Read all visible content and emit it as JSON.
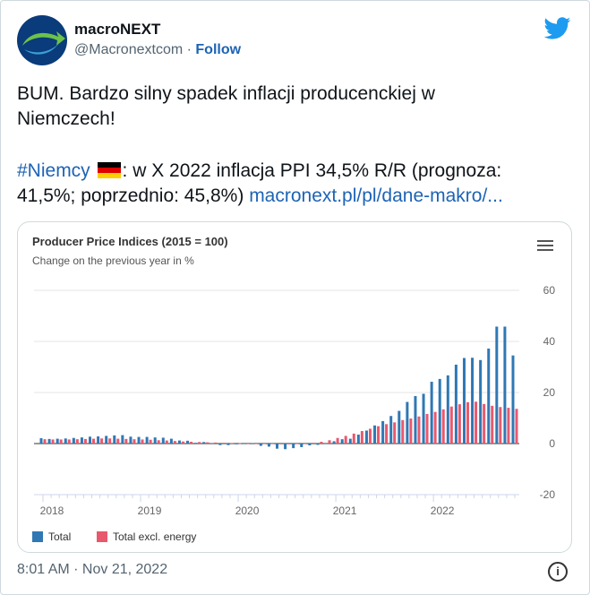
{
  "author": {
    "name": "macroNEXT",
    "handle": "@Macronextcom",
    "separator": "·",
    "follow_label": "Follow"
  },
  "tweet": {
    "line1": "BUM. Bardzo silny spadek inflacji producenckiej w",
    "line2": "Niemczech!",
    "hashtag": "#Niemcy",
    "line3_rest": ": w X 2022 inflacja PPI 34,5% R/R (prognoza:",
    "line4": "41,5%; poprzednio: 45,8%)",
    "link": "macronext.pl/pl/dane-makro/..."
  },
  "chart": {
    "title": "Producer Price Indices (2015 = 100)",
    "subtitle": "Change on the previous year in %"
  },
  "chart_data": {
    "type": "bar",
    "ylim": [
      -20,
      60
    ],
    "yticks": [
      "60",
      "40",
      "20",
      "0",
      "-20"
    ],
    "xticks": [
      "2018",
      "2019",
      "2020",
      "2021",
      "2022"
    ],
    "grid": true,
    "legend_placement": "bottom-left",
    "series": [
      {
        "name": "Total",
        "color": "#2f78b4",
        "values": [
          2.1,
          1.8,
          1.9,
          2.0,
          2.2,
          2.4,
          2.7,
          2.8,
          3.0,
          3.2,
          3.3,
          2.7,
          2.6,
          2.6,
          2.4,
          2.3,
          1.9,
          1.2,
          1.1,
          0.3,
          0.6,
          0.2,
          -0.6,
          -0.6,
          -0.3,
          0.0,
          0.2,
          -0.9,
          -1.2,
          -2.0,
          -2.2,
          -1.8,
          -1.4,
          -0.7,
          -0.5,
          -0.2,
          0.9,
          1.7,
          1.9,
          3.5,
          5.1,
          7.1,
          8.8,
          10.8,
          12.8,
          16.3,
          18.6,
          19.5,
          24.2,
          25.3,
          26.7,
          30.9,
          33.5,
          33.6,
          32.7,
          37.2,
          45.8,
          45.8,
          34.5
        ]
      },
      {
        "name": "Total excl. energy",
        "color": "#e8596e",
        "values": [
          1.7,
          1.6,
          1.6,
          1.6,
          1.7,
          1.8,
          1.9,
          2.0,
          2.0,
          1.9,
          1.8,
          1.7,
          1.6,
          1.5,
          1.3,
          1.2,
          1.0,
          0.8,
          0.7,
          0.6,
          0.5,
          0.4,
          0.3,
          0.2,
          0.1,
          0.0,
          -0.1,
          -0.1,
          -0.2,
          -0.3,
          -0.3,
          -0.2,
          0.0,
          0.3,
          0.7,
          1.3,
          2.2,
          3.0,
          3.9,
          4.9,
          5.8,
          6.8,
          7.6,
          8.3,
          9.2,
          9.8,
          10.6,
          11.6,
          12.4,
          13.4,
          14.5,
          15.4,
          16.2,
          16.4,
          15.5,
          14.8,
          14.3,
          14.0,
          13.6
        ]
      }
    ]
  },
  "legend": {
    "total": "Total",
    "excl": "Total excl. energy"
  },
  "footer": {
    "timestamp": "8:01 AM · Nov 21, 2022",
    "info_glyph": "i"
  }
}
